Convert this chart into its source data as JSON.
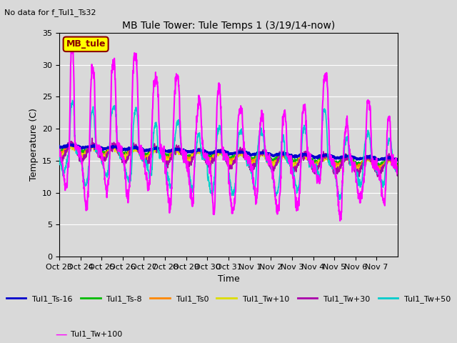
{
  "title": "MB Tule Tower: Tule Temps 1 (3/19/14-now)",
  "no_data_text": "No data for f_Tul1_Ts32",
  "ylabel": "Temperature (C)",
  "xlabel": "Time",
  "ylim": [
    0,
    35
  ],
  "yticks": [
    0,
    5,
    10,
    15,
    20,
    25,
    30,
    35
  ],
  "legend_box_label": "MB_tule",
  "legend_box_color": "#ffff00",
  "legend_box_border": "#8B0000",
  "bg_color": "#d9d9d9",
  "series": [
    {
      "label": "Tul1_Ts-16",
      "color": "#0000cc",
      "linewidth": 2.0,
      "zorder": 5
    },
    {
      "label": "Tul1_Ts-8",
      "color": "#00bb00",
      "linewidth": 1.2,
      "zorder": 4
    },
    {
      "label": "Tul1_Ts0",
      "color": "#ff8800",
      "linewidth": 1.2,
      "zorder": 4
    },
    {
      "label": "Tul1_Tw+10",
      "color": "#dddd00",
      "linewidth": 1.2,
      "zorder": 4
    },
    {
      "label": "Tul1_Tw+30",
      "color": "#aa00aa",
      "linewidth": 1.2,
      "zorder": 4
    },
    {
      "label": "Tul1_Tw+50",
      "color": "#00cccc",
      "linewidth": 1.2,
      "zorder": 6
    },
    {
      "label": "Tul1_Tw+100",
      "color": "#ff00ff",
      "linewidth": 1.5,
      "zorder": 7
    }
  ],
  "xtick_labels": [
    "Oct 23",
    "Oct 24",
    "Oct 25",
    "Oct 26",
    "Oct 27",
    "Oct 28",
    "Oct 29",
    "Oct 30",
    "Oct 31",
    "Nov 1",
    "Nov 2",
    "Nov 3",
    "Nov 4",
    "Nov 5",
    "Nov 6",
    "Nov 7"
  ],
  "n_days": 16
}
